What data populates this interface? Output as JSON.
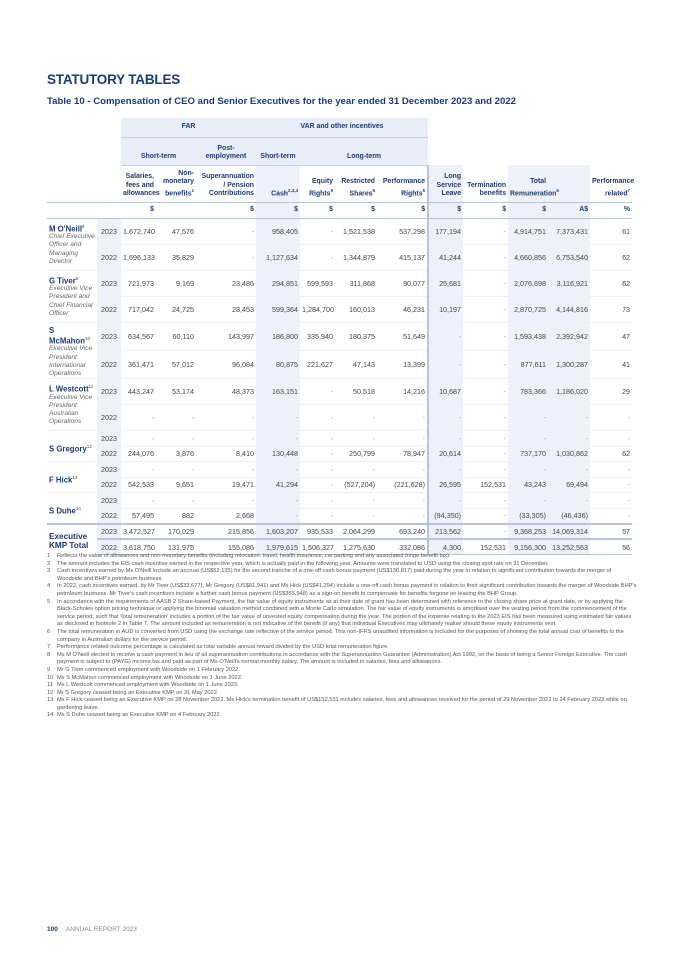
{
  "heading": "STATUTORY TABLES",
  "table_title": "Table 10 - Compensation of CEO and Senior Executives for the year ended 31 December 2023 and 2022",
  "groups": {
    "far": "FAR",
    "var": "VAR and other incentives"
  },
  "subgroups": {
    "short_term": "Short-term",
    "post_employment": "Post-employment",
    "short_term2": "Short-term",
    "long_term": "Long-term"
  },
  "columns": [
    {
      "label": "Salaries, fees and allowances",
      "sup": "",
      "unit": "$"
    },
    {
      "label": "Non-monetary benefits",
      "sup": "1",
      "unit": ""
    },
    {
      "label": "Superannuation / Pension Contributions",
      "sup": "",
      "unit": "$"
    },
    {
      "label": "Cash",
      "sup": "2,3,4",
      "unit": "$"
    },
    {
      "label": "Equity Rights",
      "sup": "5",
      "unit": "$"
    },
    {
      "label": "Restricted Shares",
      "sup": "5",
      "unit": "$"
    },
    {
      "label": "Performance Rights",
      "sup": "5",
      "unit": "$"
    },
    {
      "label": "Long Service Leave",
      "sup": "",
      "unit": "$"
    },
    {
      "label": "Termination benefits",
      "sup": "",
      "unit": "$"
    },
    {
      "label": "Total Remuneration",
      "sup": "6",
      "unit": "$"
    },
    {
      "label": "",
      "sup": "",
      "unit": "A$"
    },
    {
      "label": "Performance related",
      "sup": "7",
      "unit": "%"
    }
  ],
  "executives": [
    {
      "name": "M O'Neill",
      "sup": "8",
      "role": "Chief Executive Officer and Managing Director",
      "rows": [
        {
          "year": "2023",
          "values": [
            "1,672,740",
            "47,576",
            "-",
            "958,405",
            "-",
            "1,521,538",
            "537,298",
            "177,194",
            "-",
            "4,914,751",
            "7,373,431",
            "61"
          ]
        },
        {
          "year": "2022",
          "values": [
            "1,696,133",
            "35,829",
            "-",
            "1,127,634",
            "-",
            "1,344,879",
            "415,137",
            "41,244",
            "-",
            "4,660,856",
            "6,753,540",
            "62"
          ]
        }
      ]
    },
    {
      "name": "G Tiver",
      "sup": "9",
      "role": "Executive Vice President and Chief Financial Officer",
      "rows": [
        {
          "year": "2023",
          "values": [
            "721,973",
            "9,169",
            "23,486",
            "294,851",
            "599,593",
            "311,868",
            "90,077",
            "25,681",
            "-",
            "2,076,698",
            "3,116,921",
            "62"
          ]
        },
        {
          "year": "2022",
          "values": [
            "717,042",
            "24,725",
            "28,453",
            "599,364",
            "1,284,700",
            "160,013",
            "46,231",
            "10,197",
            "-",
            "2,870,725",
            "4,144,816",
            "73"
          ]
        }
      ]
    },
    {
      "name": "S McMahon",
      "sup": "10",
      "role": "Executive Vice President International Operations",
      "rows": [
        {
          "year": "2023",
          "values": [
            "634,567",
            "60,110",
            "143,997",
            "186,800",
            "335,940",
            "180,375",
            "51,649",
            "-",
            "-",
            "1,593,438",
            "2,392,942",
            "47"
          ]
        },
        {
          "year": "2022",
          "values": [
            "361,471",
            "57,012",
            "96,084",
            "80,875",
            "221,627",
            "47,143",
            "13,399",
            "-",
            "-",
            "877,611",
            "1,300,287",
            "41"
          ]
        }
      ]
    },
    {
      "name": "L Westcott",
      "sup": "11",
      "role": "Executive Vice President Australian Operations",
      "rows": [
        {
          "year": "2023",
          "values": [
            "443,247",
            "53,174",
            "48,373",
            "163,151",
            "-",
            "50,518",
            "14,216",
            "10,687",
            "-",
            "783,366",
            "1,186,020",
            "29"
          ]
        },
        {
          "year": "2022",
          "values": [
            "-",
            "-",
            "-",
            "-",
            "-",
            "-",
            "-",
            "-",
            "-",
            "-",
            "-",
            "-"
          ]
        }
      ]
    },
    {
      "name": "S Gregory",
      "sup": "12",
      "role": "",
      "rows": [
        {
          "year": "2023",
          "values": [
            "-",
            "-",
            "-",
            "-",
            "-",
            "-",
            "-",
            "-",
            "-",
            "-",
            "-",
            "-"
          ]
        },
        {
          "year": "2022",
          "values": [
            "244,076",
            "3,876",
            "8,410",
            "130,448",
            "-",
            "250,799",
            "78,947",
            "20,614",
            "-",
            "737,170",
            "1,030,862",
            "62"
          ]
        }
      ]
    },
    {
      "name": "F Hick",
      "sup": "13",
      "role": "",
      "rows": [
        {
          "year": "2023",
          "values": [
            "-",
            "-",
            "-",
            "-",
            "-",
            "-",
            "-",
            "-",
            "-",
            "-",
            "-",
            "-"
          ]
        },
        {
          "year": "2022",
          "values": [
            "542,533",
            "9,651",
            "19,471",
            "41,294",
            "-",
            "(527,204)",
            "(221,628)",
            "26,595",
            "152,531",
            "43,243",
            "69,494",
            "-"
          ]
        }
      ]
    },
    {
      "name": "S Duhe",
      "sup": "14",
      "role": "",
      "rows": [
        {
          "year": "2023",
          "values": [
            "-",
            "-",
            "-",
            "-",
            "-",
            "-",
            "-",
            "-",
            "-",
            "-",
            "-",
            "-"
          ]
        },
        {
          "year": "2022",
          "values": [
            "57,495",
            "882",
            "2,668",
            "-",
            "-",
            "-",
            "-",
            "(94,350)",
            "-",
            "(33,305)",
            "(46,436)",
            "-"
          ]
        }
      ]
    }
  ],
  "total": {
    "name": "Executive KMP Total",
    "rows": [
      {
        "year": "2023",
        "values": [
          "3,472,527",
          "170,029",
          "215,856",
          "1,603,207",
          "935,533",
          "2,064,299",
          "693,240",
          "213,562",
          "-",
          "9,368,253",
          "14,069,314",
          "57"
        ]
      },
      {
        "year": "2022",
        "values": [
          "3,618,750",
          "131,975",
          "155,086",
          "1,979,615",
          "1,506,327",
          "1,275,630",
          "332,086",
          "4,300",
          "152,531",
          "9,156,300",
          "13,252,563",
          "56"
        ]
      }
    ]
  },
  "footnotes": [
    "Reflects the value of allowances and non-monetary benefits (including relocation, travel, health insurance, car parking and any associated fringe benefit tax).",
    "The amount includes the EIS cash incentive earned in the respective year, which is actually paid in the following year. Amounts were translated to USD using the closing spot rate on 31 December.",
    "Cash incentives earned by Ms O'Neill include an accrual (US$52,125) for the second tranche of a one-off cash bonus payment (US$130,817) paid during the year in relation to significant contribution towards the merger of Woodside and BHP's petroleum business.",
    "In 2022, cash incentives earned, by Mr Tiver (US$33,677), Mr Gregory (US$61,941) and Ms Hick (US$41,294) include a one-off cash bonus payment in relation to their significant contribution towards the merger of Woodside BHP's petroleum business. Mr Tiver's cash incentives include a further cash bonus payment (US$355,948) as a sign-on benefit to compensate for benefits forgone on leaving the BHP Group.",
    "In accordance with the requirements of AASB 2 Share-based Payment, the fair value of equity instruments as at their date of grant has been determined with reference to the closing share price at grant date, or by applying the Black-Scholes option pricing technique or applying the binomial valuation method combined with a Monte Carlo simulation. The fair value of equity instruments is amortised over the vesting period from the commencement of the service period, such that 'total remuneration' includes a portion of the fair value of unvested equity compensation during the year. The portion of the expense relating to the 2023 EIS has been measured using estimated fair values as disclosed in footnote 2 in Table 7. The amount included as remuneration is not indicative of the benefit (if any) that individual Executives may ultimately realise should these equity instruments vest.",
    "The total remuneration in AUD is converted from USD using the exchange rate reflective of the service period. This non-IFRS unaudited information is included for the purposes of showing the total annual cost of benefits to the company in Australian dollars for the service period.",
    "Performance related outcome percentage is calculated as total variable annual reward divided by the USD total remuneration figure.",
    "Ms M O'Neill elected to receive a cash payment in lieu of all superannuation contributions in accordance with the Superannuation Guarantee (Administration) Act 1992, on the basis of being a Senior Foreign Executive. The cash payment is subject to (PAYG) income tax and paid as part of Ms O'Neill's normal monthly salary. The amount is included in salaries, fees and allowances.",
    "Mr G Tiver commenced employment with Woodside on 1 February 2022.",
    "Ms S McMahon commenced employment with Woodside on 1 June 2022.",
    "Ms L Westcott commenced employment with Woodside on 1 June 2023.",
    "Mr S Gregory ceased being an Executive KMP on 31 May 2022.",
    "Ms F Hick ceased being an Executive KMP on 28 November 2022. Ms Hick's termination benefit of US$152,531 includes salaries, fees and allowances received for the period of 29 November 2022 to 24 February 2023 while on gardening leave.",
    "Ms S Duhe ceased being an Executive KMP on 4 February 2022."
  ],
  "page": {
    "number": "100",
    "label": "ANNUAL REPORT 2023"
  },
  "colors": {
    "heading": "#1f3a6e",
    "shade": "#eef1fa"
  }
}
